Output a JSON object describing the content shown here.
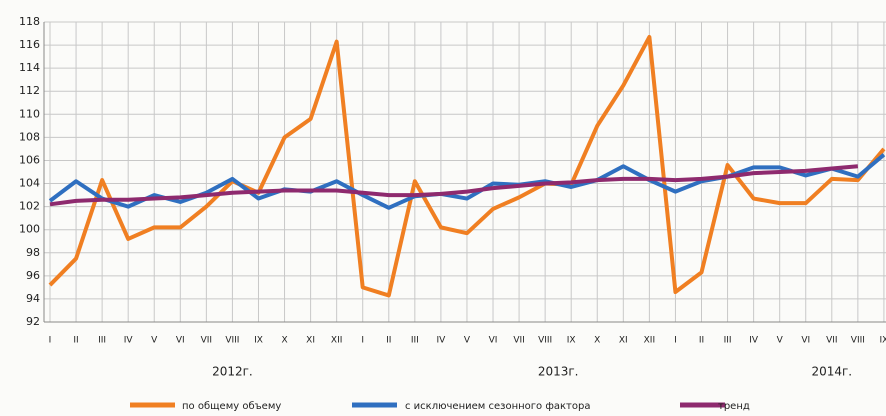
{
  "chart_data": {
    "type": "line",
    "categories": [
      "I",
      "II",
      "III",
      "IV",
      "V",
      "VI",
      "VII",
      "VIII",
      "IX",
      "X",
      "XI",
      "XII",
      "I",
      "II",
      "III",
      "IV",
      "V",
      "VI",
      "VII",
      "VIII",
      "IX",
      "X",
      "XI",
      "XII",
      "I",
      "II",
      "III",
      "IV",
      "V",
      "VI",
      "VII",
      "VIII",
      "IX"
    ],
    "year_labels": [
      "2012г.",
      "2013г.",
      "2014г."
    ],
    "series": [
      {
        "name": "по общему объему",
        "color": "#f07f22",
        "values": [
          95.2,
          97.5,
          104.3,
          99.2,
          100.2,
          100.2,
          102,
          104.2,
          103.2,
          108,
          109.6,
          116.3,
          95,
          94.3,
          104.2,
          100.2,
          99.7,
          101.8,
          102.8,
          104,
          103.9,
          109,
          112.5,
          116.7,
          94.6,
          96.3,
          105.6,
          102.7,
          102.3,
          102.3,
          104.4,
          104.3,
          107
        ]
      },
      {
        "name": "с исключением сезонного фактора",
        "color": "#2f6fc0",
        "values": [
          102.5,
          104.2,
          102.7,
          102,
          103,
          102.4,
          103.2,
          104.4,
          102.7,
          103.5,
          103.3,
          104.2,
          103,
          101.9,
          102.9,
          103.1,
          102.7,
          104,
          103.9,
          104.2,
          103.7,
          104.3,
          105.5,
          104.3,
          103.3,
          104.2,
          104.6,
          105.4,
          105.4,
          104.7,
          105.3,
          104.6,
          106.5
        ]
      },
      {
        "name": "тренд",
        "color": "#8e2a6e",
        "values": [
          102.2,
          102.5,
          102.6,
          102.6,
          102.7,
          102.8,
          103,
          103.2,
          103.3,
          103.4,
          103.4,
          103.4,
          103.2,
          103,
          103,
          103.1,
          103.3,
          103.6,
          103.8,
          104,
          104.1,
          104.3,
          104.4,
          104.4,
          104.3,
          104.4,
          104.6,
          104.9,
          105,
          105.1,
          105.3,
          105.5,
          null
        ]
      }
    ],
    "ylim": [
      92,
      118
    ],
    "yticks": [
      92,
      94,
      96,
      98,
      100,
      102,
      104,
      106,
      108,
      110,
      112,
      114,
      116,
      118
    ],
    "grid": true
  }
}
